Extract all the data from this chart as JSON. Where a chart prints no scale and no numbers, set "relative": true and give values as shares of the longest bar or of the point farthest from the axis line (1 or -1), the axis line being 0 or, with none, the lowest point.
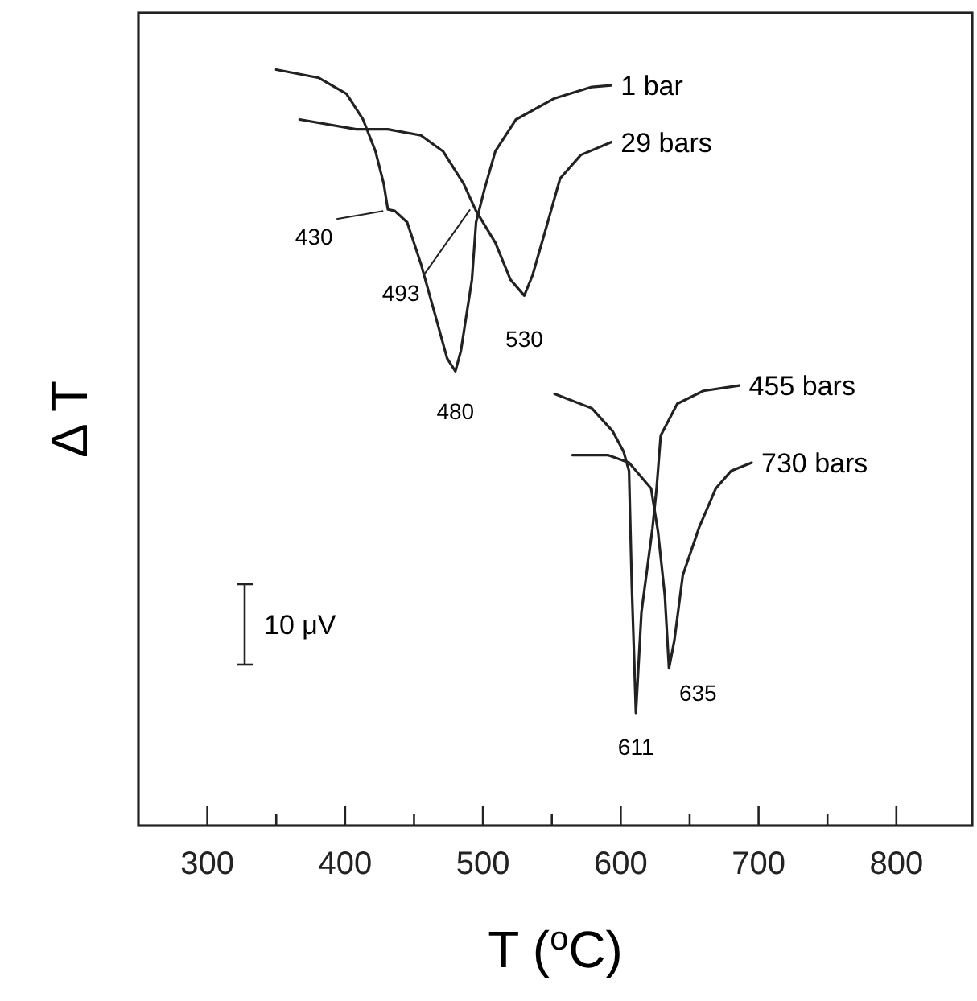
{
  "chart_data": {
    "type": "line",
    "relative": true,
    "xlabel": "T ($^{o}$C)",
    "ylabel": "Δ T",
    "xlim": [
      250,
      855
    ],
    "xticks": [
      300,
      {
        "value": 350,
        "label": null
      },
      400,
      {
        "value": 450,
        "label": null
      },
      500,
      {
        "value": 550,
        "label": null
      },
      600,
      {
        "value": 650,
        "label": null
      },
      700,
      {
        "value": 750,
        "label": null
      },
      800
    ],
    "series": [
      {
        "name": "1 bar",
        "color": "#222222",
        "x": [
          350,
          381,
          401,
          413,
          422,
          428,
          431,
          436,
          445,
          455,
          466,
          474,
          480,
          484,
          492,
          495,
          501,
          509,
          524,
          552,
          579,
          593
        ],
        "values": [
          1.0,
          0.989,
          0.968,
          0.934,
          0.892,
          0.849,
          0.815,
          0.813,
          0.798,
          0.743,
          0.671,
          0.618,
          0.601,
          0.628,
          0.722,
          0.798,
          0.841,
          0.892,
          0.934,
          0.962,
          0.977,
          0.979
        ]
      },
      {
        "name": "29 bars",
        "color": "#222222",
        "x": [
          367,
          408,
          431,
          455,
          471,
          486,
          495,
          509,
          520,
          530,
          536,
          547,
          556,
          571,
          593
        ],
        "values": [
          0.934,
          0.921,
          0.921,
          0.913,
          0.892,
          0.849,
          0.813,
          0.771,
          0.722,
          0.701,
          0.728,
          0.798,
          0.856,
          0.887,
          0.904
        ]
      },
      {
        "name": "455 bars",
        "color": "#222222",
        "x": [
          552,
          579,
          594,
          602,
          606,
          608,
          611,
          615,
          623,
          626,
          629,
          641,
          660,
          686
        ],
        "values": [
          0.571,
          0.552,
          0.522,
          0.495,
          0.469,
          0.318,
          0.149,
          0.282,
          0.393,
          0.446,
          0.516,
          0.558,
          0.575,
          0.582
        ]
      },
      {
        "name": "730 bars",
        "color": "#222222",
        "x": [
          565,
          591,
          606,
          622,
          627,
          632,
          635,
          639,
          645,
          657,
          669,
          680,
          695
        ],
        "values": [
          0.49,
          0.49,
          0.48,
          0.446,
          0.389,
          0.304,
          0.208,
          0.246,
          0.331,
          0.395,
          0.446,
          0.469,
          0.48
        ]
      }
    ],
    "annotations": [
      {
        "text": "430",
        "x": 430,
        "y": 0.815
      },
      {
        "text": "493",
        "x": 493,
        "y": 0.817
      },
      {
        "text": "480",
        "x": 480,
        "y": 0.601
      },
      {
        "text": "530",
        "x": 530,
        "y": 0.701
      },
      {
        "text": "611",
        "x": 611,
        "y": 0.149
      },
      {
        "text": "635",
        "x": 635,
        "y": 0.208
      },
      "10 μV"
    ]
  }
}
